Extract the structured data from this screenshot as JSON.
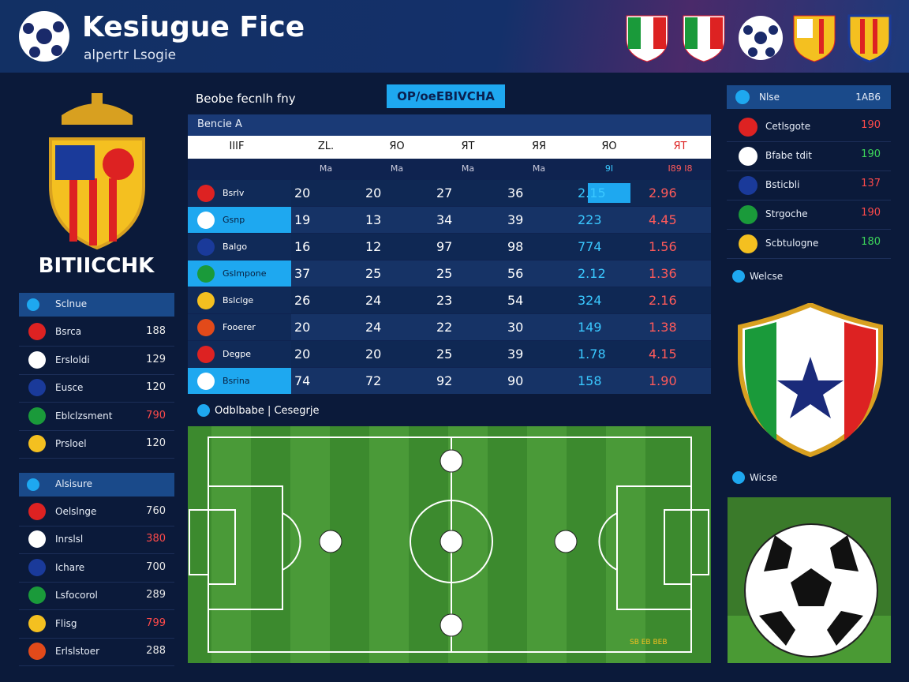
{
  "header": {
    "title": "Kesiugue Fice",
    "subtitle": "alpertr Lsogie"
  },
  "left": {
    "crest_label": "BITIICCHK",
    "sections": [
      {
        "header": "Sclnue",
        "items": [
          {
            "name": "Bsrca",
            "value": "188",
            "color": "#e8e8e8"
          },
          {
            "name": "Ersloldi",
            "value": "129",
            "color": "#e8e8e8"
          },
          {
            "name": "Eusce",
            "value": "120",
            "color": "#e8e8e8"
          },
          {
            "name": "Eblclzsment",
            "value": "790",
            "color": "#ff4a4a"
          },
          {
            "name": "Prsloel",
            "value": "120",
            "color": "#e8e8e8"
          }
        ]
      },
      {
        "header": "Alsisure",
        "items": [
          {
            "name": "Oelslnge",
            "value": "760",
            "color": "#e8e8e8"
          },
          {
            "name": "Inrslsl",
            "value": "380",
            "color": "#ff4a4a"
          },
          {
            "name": "Ichare",
            "value": "700",
            "color": "#e8e8e8"
          },
          {
            "name": "Lsfocorol",
            "value": "289",
            "color": "#e8e8e8"
          },
          {
            "name": "Flisg",
            "value": "799",
            "color": "#ff4a4a"
          },
          {
            "name": "Erlslstoer",
            "value": "288",
            "color": "#e8e8e8"
          }
        ]
      }
    ]
  },
  "center": {
    "title": "Beobe fecnlh fny",
    "tab": "OP/oeEBIVCHA",
    "caption": "Bencie A",
    "table": {
      "header": [
        "IIIF",
        "ZL.",
        "ЯO",
        "ЯT",
        "ЯЯ",
        "ЯO",
        "ЯT"
      ],
      "subheader": [
        "Ma",
        "Ma",
        "Ma",
        "Ma",
        "9I",
        "I89 I8"
      ],
      "highlight_rows": [
        1,
        3,
        7
      ],
      "rows": [
        [
          "Bsrlv",
          "20",
          "20",
          "27",
          "36",
          "2.15",
          "2.96"
        ],
        [
          "Gsnp",
          "19",
          "13",
          "34",
          "39",
          "223",
          "4.45"
        ],
        [
          "Balgo",
          "16",
          "12",
          "97",
          "98",
          "774",
          "1.56"
        ],
        [
          "Gslmpone",
          "37",
          "25",
          "25",
          "56",
          "2.12",
          "1.36"
        ],
        [
          "Bslclge",
          "26",
          "24",
          "23",
          "54",
          "324",
          "2.16"
        ],
        [
          "Fooerer",
          "20",
          "24",
          "22",
          "30",
          "149",
          "1.38"
        ],
        [
          "Degpe",
          "20",
          "20",
          "25",
          "39",
          "1.78",
          "4.15"
        ],
        [
          "Bsrina",
          "74",
          "72",
          "92",
          "90",
          "158",
          "1.90"
        ]
      ]
    },
    "pitch_label": "Odblbabe | Cesegrje",
    "pitch_note": "SB EB BEB"
  },
  "right": {
    "header": {
      "name": "Nlse",
      "value": "1AB6"
    },
    "items": [
      {
        "name": "Cetlsgote",
        "value": "190",
        "color": "#ff4a4a"
      },
      {
        "name": "Bfabe tdit",
        "value": "190",
        "color": "#3cd65a"
      },
      {
        "name": "Bsticbli",
        "value": "137",
        "color": "#ff4a4a"
      },
      {
        "name": "Strgoche",
        "value": "190",
        "color": "#ff4a4a"
      },
      {
        "name": "Scbtulogne",
        "value": "180",
        "color": "#3cd65a"
      }
    ],
    "label_1": "Welcse",
    "label_2": "Wicse"
  }
}
